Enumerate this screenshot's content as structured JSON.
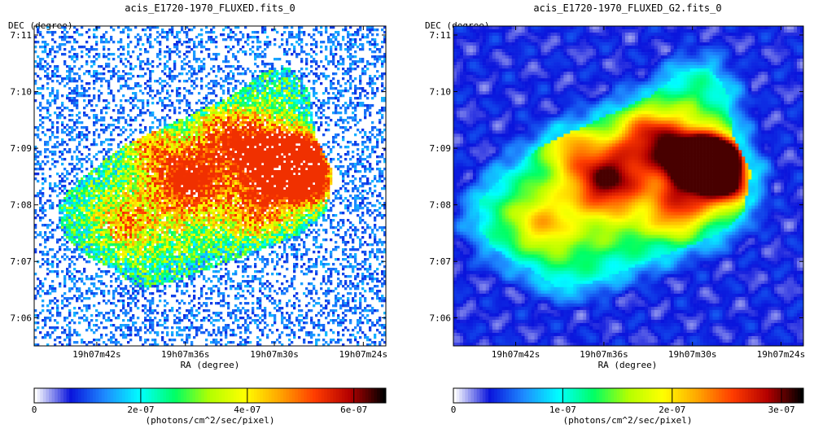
{
  "chart_data": [
    {
      "type": "heatmap",
      "title": "acis_E1720-1970_FLUXED.fits_0",
      "xlabel": "RA (degree)",
      "ylabel": "DEC (degree)",
      "x_ticks": [
        "19h07m42s",
        "19h07m36s",
        "19h07m30s",
        "19h07m24s"
      ],
      "y_ticks": [
        "7:11",
        "7:10",
        "7:09",
        "7:08",
        "7:07",
        "7:06"
      ],
      "colorbar": {
        "min": 0,
        "max": 6.6e-07,
        "ticks": [
          "0",
          "2e-07",
          "4e-07",
          "6e-07"
        ],
        "tick_values": [
          0,
          2e-07,
          4e-07,
          6e-07
        ],
        "label": "(photons/cm^2/sec/pixel)"
      },
      "grid": false,
      "style": "noisy unsmoothed counts"
    },
    {
      "type": "heatmap",
      "title": "acis_E1720-1970_FLUXED_G2.fits_0",
      "xlabel": "RA (degree)",
      "ylabel": "DEC (degree)",
      "x_ticks": [
        "19h07m42s",
        "19h07m36s",
        "19h07m30s",
        "19h07m24s"
      ],
      "y_ticks": [
        "7:11",
        "7:10",
        "7:09",
        "7:08",
        "7:07",
        "7:06"
      ],
      "colorbar": {
        "min": 0,
        "max": 3.2e-07,
        "ticks": [
          "0",
          "1e-07",
          "2e-07",
          "3e-07"
        ],
        "tick_values": [
          0,
          1e-07,
          2e-07,
          3e-07
        ],
        "label": "(photons/cm^2/sec/pixel)"
      },
      "grid": false,
      "style": "gaussian smoothed"
    }
  ],
  "colormap": [
    "#ffffff",
    "#0a14dc",
    "#1e8cff",
    "#00ffff",
    "#00ff64",
    "#b4ff00",
    "#ffff00",
    "#ffa500",
    "#ff3c00",
    "#b40000",
    "#000000"
  ]
}
